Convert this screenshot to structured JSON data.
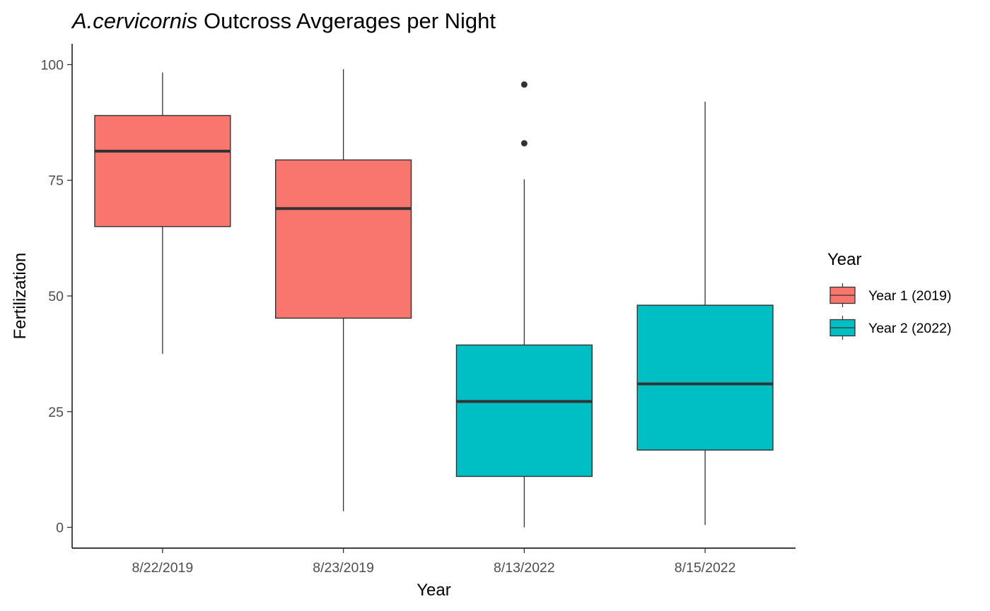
{
  "chart_data": {
    "type": "boxplot",
    "title": {
      "italic_part": "A.cervicornis",
      "rest": " Outcross Avgerages per Night"
    },
    "xlabel": "Year",
    "ylabel": "Fertilization",
    "ylim": [
      -4.5,
      104.5
    ],
    "yticks": [
      0,
      25,
      50,
      75,
      100
    ],
    "grid": false,
    "categories": [
      "8/22/2019",
      "8/23/2019",
      "8/13/2022",
      "8/15/2022"
    ],
    "boxes": [
      {
        "category": "8/22/2019",
        "group": "Year 1 (2019)",
        "whisker_low": 37.5,
        "q1": 65.0,
        "median": 81.3,
        "q3": 89.0,
        "whisker_high": 98.3,
        "outliers": []
      },
      {
        "category": "8/23/2019",
        "group": "Year 1 (2019)",
        "whisker_low": 3.5,
        "q1": 45.2,
        "median": 68.9,
        "q3": 79.4,
        "whisker_high": 99.0,
        "outliers": []
      },
      {
        "category": "8/13/2022",
        "group": "Year 2 (2022)",
        "whisker_low": 0.0,
        "q1": 11.0,
        "median": 27.2,
        "q3": 39.4,
        "whisker_high": 75.2,
        "outliers": [
          83.0,
          95.7
        ]
      },
      {
        "category": "8/15/2022",
        "group": "Year 2 (2022)",
        "whisker_low": 0.5,
        "q1": 16.7,
        "median": 31.0,
        "q3": 48.0,
        "whisker_high": 92.0,
        "outliers": []
      }
    ],
    "legend": {
      "title": "Year",
      "position": "right",
      "entries": [
        {
          "label": "Year 1 (2019)",
          "color": "#F8766D"
        },
        {
          "label": "Year 2 (2022)",
          "color": "#00BFC4"
        }
      ]
    }
  }
}
